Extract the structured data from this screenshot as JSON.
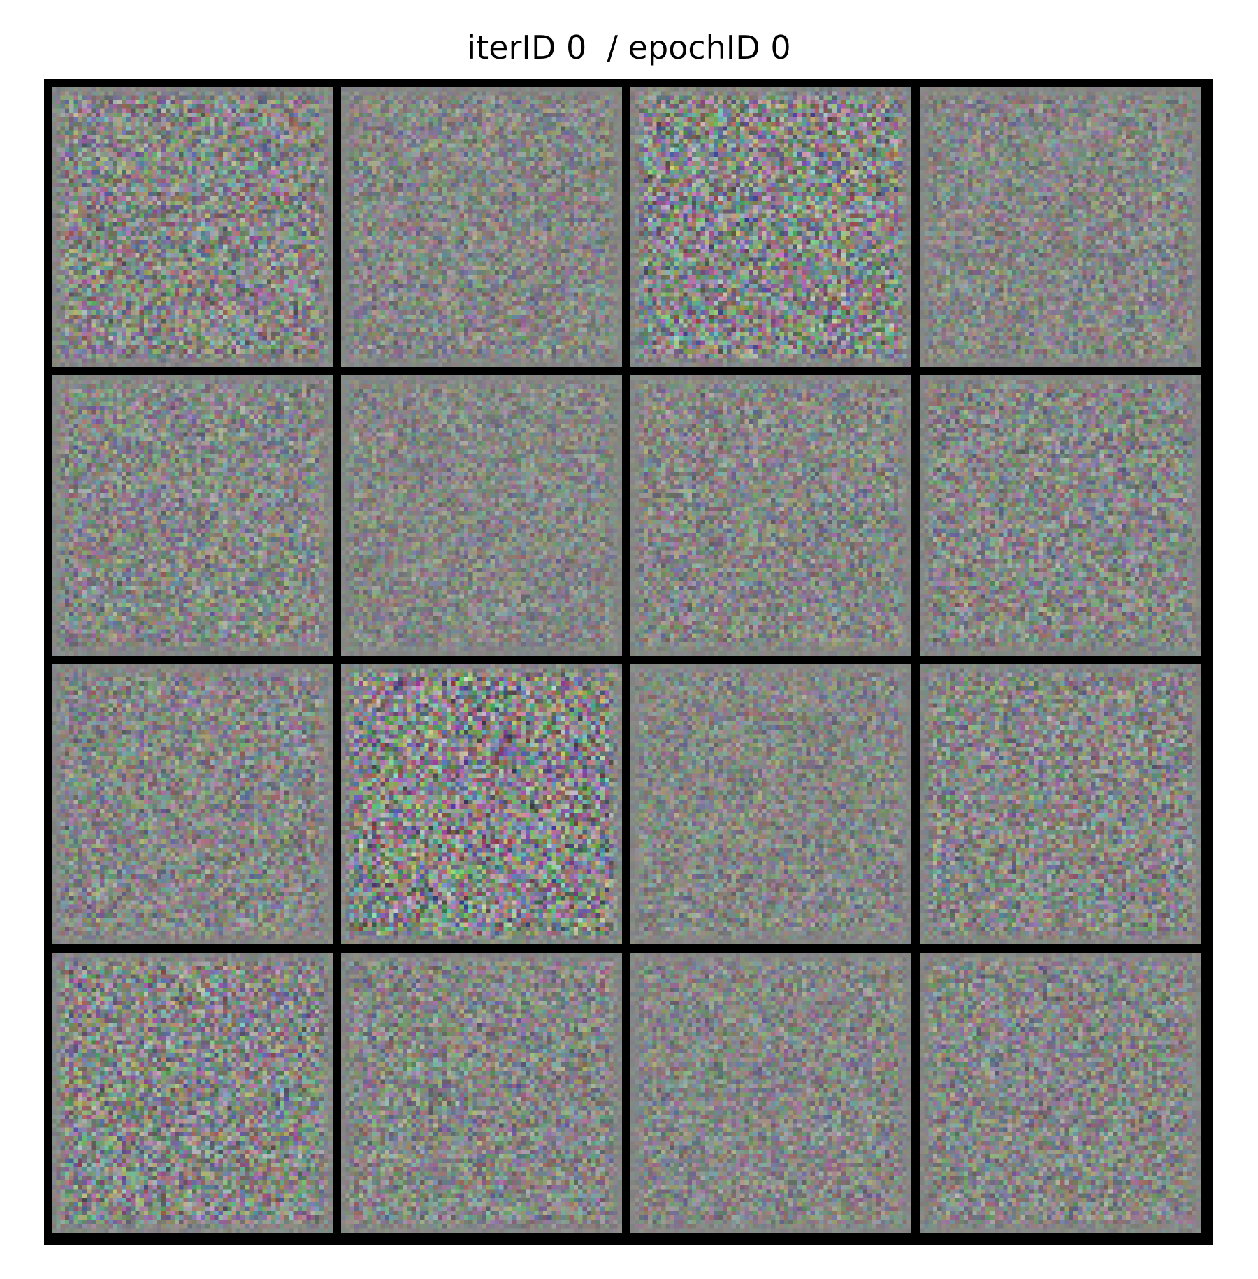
{
  "title": "iterID 0  / epochID 0",
  "grid": {
    "rows": 4,
    "cols": 4,
    "tile_resolution": 64,
    "tiles": [
      {
        "noise_level": 0.55
      },
      {
        "noise_level": 0.4
      },
      {
        "noise_level": 0.65
      },
      {
        "noise_level": 0.38
      },
      {
        "noise_level": 0.45
      },
      {
        "noise_level": 0.36
      },
      {
        "noise_level": 0.42
      },
      {
        "noise_level": 0.45
      },
      {
        "noise_level": 0.45
      },
      {
        "noise_level": 0.72
      },
      {
        "noise_level": 0.38
      },
      {
        "noise_level": 0.48
      },
      {
        "noise_level": 0.58
      },
      {
        "noise_level": 0.46
      },
      {
        "noise_level": 0.4
      },
      {
        "noise_level": 0.44
      }
    ]
  },
  "colors": {
    "background": "#ffffff",
    "frame": "#000000",
    "tile_base": "#858585"
  }
}
